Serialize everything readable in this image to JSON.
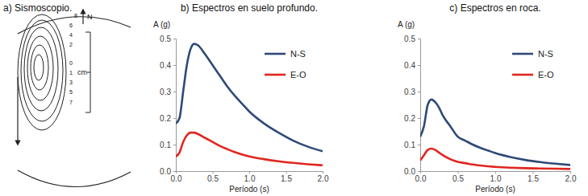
{
  "chart_data": [
    {
      "type": "diagram",
      "title": "a) Sismoscopio.",
      "annotations": [
        "8",
        "6",
        "4",
        "2",
        "0",
        "1",
        "3",
        "5",
        "7",
        "N",
        "cm"
      ]
    },
    {
      "type": "line",
      "title": "b) Espectros en suelo profundo.",
      "x_label": "Período (s)",
      "y_label": "A (g)",
      "x": [
        0,
        0.05,
        0.1,
        0.15,
        0.2,
        0.25,
        0.3,
        0.4,
        0.5,
        0.6,
        0.7,
        0.8,
        0.9,
        1.0,
        1.2,
        1.4,
        1.6,
        1.8,
        2.0
      ],
      "series": [
        {
          "name": "N-S",
          "color": "#2f4a78",
          "values": [
            0.18,
            0.2,
            0.3,
            0.4,
            0.46,
            0.48,
            0.475,
            0.44,
            0.4,
            0.36,
            0.32,
            0.285,
            0.255,
            0.225,
            0.18,
            0.145,
            0.115,
            0.092,
            0.075
          ]
        },
        {
          "name": "E-O",
          "color": "#e0261f",
          "values": [
            0.055,
            0.07,
            0.11,
            0.135,
            0.145,
            0.145,
            0.14,
            0.125,
            0.11,
            0.095,
            0.083,
            0.072,
            0.063,
            0.055,
            0.045,
            0.037,
            0.031,
            0.026,
            0.022
          ]
        }
      ],
      "xlim": [
        0,
        2
      ],
      "xticks": [
        {
          "value": 0,
          "label": "0.0"
        },
        0.5,
        {
          "value": 1,
          "label": "1.0"
        },
        1.5,
        {
          "value": 2,
          "label": "2.0"
        }
      ],
      "ylim": [
        0,
        0.5
      ],
      "yticks": [
        {
          "value": 0,
          "label": "0.0"
        },
        0.1,
        0.2,
        0.3,
        0.4,
        0.5
      ],
      "grid": false,
      "legend": "upper right"
    },
    {
      "type": "line",
      "title": "c) Espectros en roca.",
      "x_label": "Período (s)",
      "y_label": "A (g)",
      "x": [
        0,
        0.05,
        0.1,
        0.15,
        0.2,
        0.25,
        0.3,
        0.4,
        0.5,
        0.6,
        0.7,
        0.8,
        0.9,
        1.0,
        1.2,
        1.4,
        1.6,
        1.8,
        2.0
      ],
      "series": [
        {
          "name": "N-S",
          "color": "#2f4a78",
          "values": [
            0.13,
            0.17,
            0.25,
            0.27,
            0.26,
            0.24,
            0.21,
            0.17,
            0.13,
            0.115,
            0.1,
            0.088,
            0.078,
            0.068,
            0.053,
            0.042,
            0.034,
            0.028,
            0.023
          ]
        },
        {
          "name": "E-O",
          "color": "#e0261f",
          "values": [
            0.04,
            0.06,
            0.08,
            0.085,
            0.08,
            0.07,
            0.06,
            0.045,
            0.035,
            0.03,
            0.025,
            0.021,
            0.018,
            0.016,
            0.013,
            0.011,
            0.01,
            0.009,
            0.008
          ]
        }
      ],
      "xlim": [
        0,
        2
      ],
      "xticks": [
        {
          "value": 0,
          "label": "0.0"
        },
        0.5,
        {
          "value": 1,
          "label": "1.0"
        },
        1.5,
        {
          "value": 2,
          "label": "2.0"
        }
      ],
      "ylim": [
        0,
        0.5
      ],
      "yticks": [
        {
          "value": 0,
          "label": "0.0"
        },
        0.1,
        0.2,
        0.3,
        0.4,
        0.5
      ],
      "grid": false,
      "legend": "upper right"
    }
  ]
}
